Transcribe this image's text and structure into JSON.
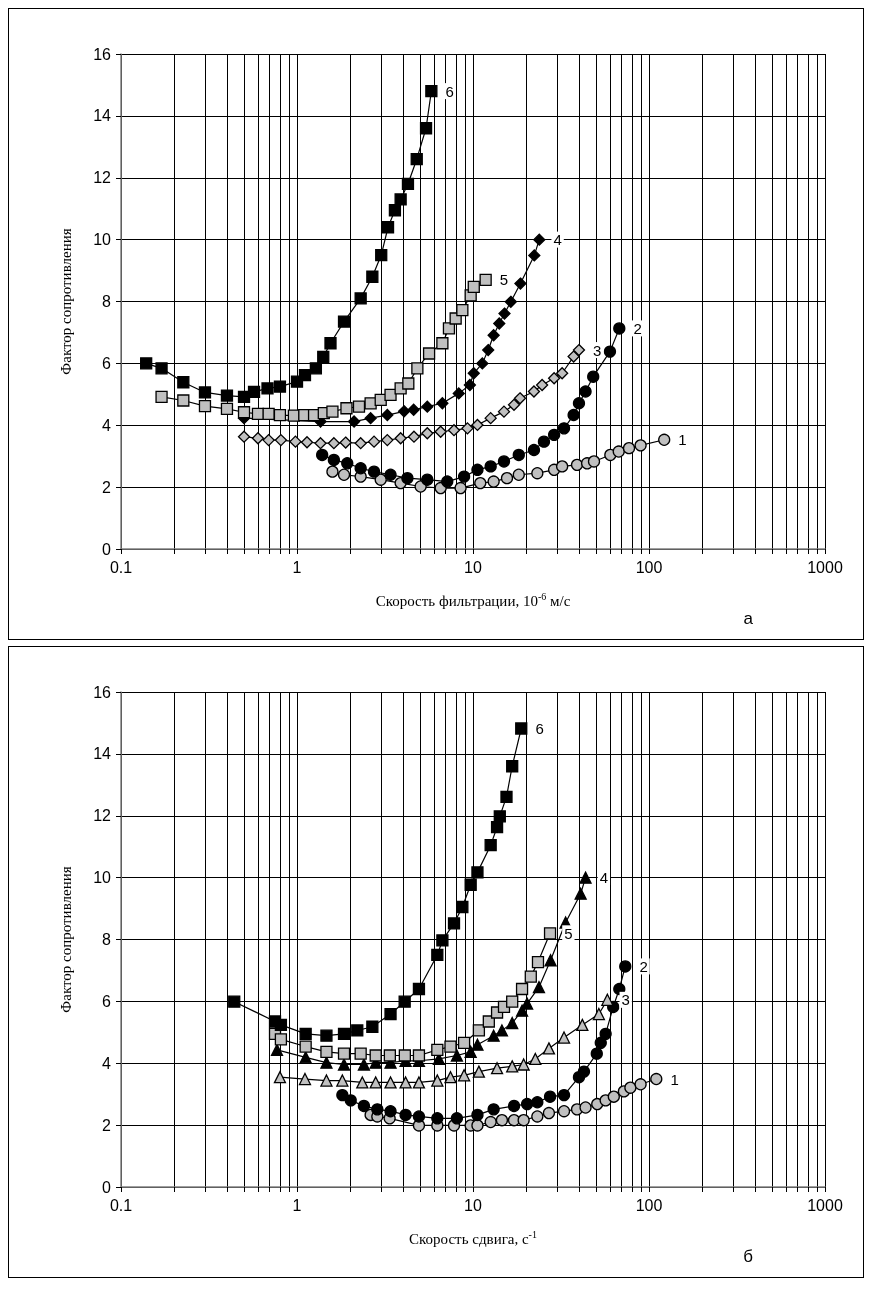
{
  "chart_data": [
    {
      "type": "line",
      "xlabel": "Скорость фильтрации, 10$^{-6}$ м/с",
      "ylabel": "Фактор сопротивления",
      "annotations": [
        "а"
      ],
      "log": "x",
      "grid": true,
      "xlim": [
        0.1,
        1000
      ],
      "xticks": [
        0.1,
        {
          "value": 0.2,
          "label": null
        },
        {
          "value": 0.3,
          "label": null
        },
        {
          "value": 0.4,
          "label": null
        },
        {
          "value": 0.5,
          "label": null
        },
        {
          "value": 0.6,
          "label": null
        },
        {
          "value": 0.7,
          "label": null
        },
        {
          "value": 0.8,
          "label": null
        },
        {
          "value": 0.9,
          "label": null
        },
        1,
        {
          "value": 2,
          "label": null
        },
        {
          "value": 3,
          "label": null
        },
        {
          "value": 4,
          "label": null
        },
        {
          "value": 5,
          "label": null
        },
        {
          "value": 6,
          "label": null
        },
        {
          "value": 7,
          "label": null
        },
        {
          "value": 8,
          "label": null
        },
        {
          "value": 9,
          "label": null
        },
        10,
        {
          "value": 20,
          "label": null
        },
        {
          "value": 30,
          "label": null
        },
        {
          "value": 40,
          "label": null
        },
        {
          "value": 50,
          "label": null
        },
        {
          "value": 60,
          "label": null
        },
        {
          "value": 70,
          "label": null
        },
        {
          "value": 80,
          "label": null
        },
        {
          "value": 90,
          "label": null
        },
        100,
        {
          "value": 200,
          "label": null
        },
        {
          "value": 300,
          "label": null
        },
        {
          "value": 400,
          "label": null
        },
        {
          "value": 500,
          "label": null
        },
        {
          "value": 600,
          "label": null
        },
        {
          "value": 700,
          "label": null
        },
        {
          "value": 800,
          "label": null
        },
        {
          "value": 900,
          "label": null
        },
        1000
      ],
      "ylim": [
        0,
        16
      ],
      "yticks": [
        0,
        2,
        4,
        6,
        8,
        10,
        12,
        14,
        16
      ],
      "series": [
        {
          "name": "1",
          "color": "#c0c0c0",
          "marker": "circle",
          "x": [
            1.59,
            1.85,
            2.3,
            2.99,
            3.88,
            5.04,
            6.55,
            8.5,
            11.0,
            13.1,
            15.6,
            18.2,
            23.2,
            28.9,
            32.1,
            39.0,
            44.5,
            48.7,
            60.3,
            67.3,
            77,
            89.6,
            122
          ],
          "values": [
            2.5,
            2.4,
            2.34,
            2.24,
            2.13,
            2.02,
            1.97,
            1.97,
            2.13,
            2.18,
            2.29,
            2.4,
            2.45,
            2.56,
            2.67,
            2.72,
            2.77,
            2.83,
            3.04,
            3.15,
            3.26,
            3.35,
            3.53
          ]
        },
        {
          "name": "2",
          "color": "#000000",
          "marker": "circle",
          "x": [
            1.39,
            1.62,
            1.93,
            2.3,
            2.74,
            3.4,
            4.24,
            5.5,
            7.14,
            8.9,
            10.6,
            12.6,
            15.0,
            18.2,
            22.2,
            25.3,
            28.9,
            32.9,
            37.3,
            40.0,
            43.6,
            48.2,
            60.0,
            67.8
          ],
          "values": [
            3.04,
            2.88,
            2.77,
            2.61,
            2.5,
            2.4,
            2.29,
            2.24,
            2.18,
            2.34,
            2.56,
            2.67,
            2.83,
            3.04,
            3.2,
            3.47,
            3.69,
            3.9,
            4.33,
            4.71,
            5.09,
            5.57,
            6.38,
            7.13
          ]
        },
        {
          "name": "3",
          "color": "#c0c0c0",
          "marker": "diamond",
          "x": [
            0.5,
            0.6,
            0.69,
            0.81,
            0.98,
            1.14,
            1.36,
            1.62,
            1.89,
            2.3,
            2.74,
            3.26,
            3.88,
            4.62,
            5.5,
            6.55,
            7.8,
            9.3,
            10.6,
            12.6,
            15.0,
            17.1,
            18.5,
            22.2,
            24.7,
            28.9,
            32.1,
            37.3,
            40.0
          ],
          "values": [
            3.63,
            3.58,
            3.52,
            3.52,
            3.47,
            3.45,
            3.42,
            3.42,
            3.44,
            3.42,
            3.47,
            3.52,
            3.58,
            3.63,
            3.74,
            3.79,
            3.84,
            3.9,
            4.01,
            4.23,
            4.44,
            4.66,
            4.87,
            5.09,
            5.3,
            5.52,
            5.68,
            6.22,
            6.43
          ]
        },
        {
          "name": "4",
          "color": "#000000",
          "marker": "diamond",
          "x": [
            0.5,
            0.68,
            0.96,
            1.36,
            2.11,
            2.62,
            3.26,
            4.06,
            4.6,
            5.5,
            6.7,
            8.3,
            9.6,
            10.1,
            11.3,
            12.2,
            13.1,
            14.1,
            15.1,
            16.4,
            18.6,
            22.3,
            23.8
          ],
          "values": [
            4.23,
            null,
            null,
            4.12,
            4.12,
            4.23,
            4.33,
            4.45,
            4.5,
            4.6,
            4.71,
            5.03,
            5.3,
            5.68,
            6.0,
            6.43,
            6.91,
            7.29,
            7.61,
            7.99,
            8.58,
            9.49,
            10.0
          ]
        },
        {
          "name": "5",
          "color": "#c0c0c0",
          "marker": "square",
          "x": [
            0.17,
            0.226,
            0.3,
            0.4,
            0.5,
            0.6,
            0.69,
            0.8,
            0.96,
            1.1,
            1.25,
            1.42,
            1.59,
            1.91,
            2.25,
            2.62,
            2.99,
            3.4,
            3.88,
            4.29,
            4.83,
            5.63,
            6.7,
            7.3,
            7.97,
            8.7,
            9.7,
            10.1,
            11.8
          ],
          "values": [
            4.92,
            4.8,
            4.62,
            4.53,
            4.42,
            4.37,
            4.37,
            4.33,
            4.31,
            4.33,
            4.33,
            4.39,
            4.44,
            4.55,
            4.6,
            4.71,
            4.82,
            4.98,
            5.19,
            5.35,
            5.84,
            6.32,
            6.65,
            7.13,
            7.45,
            7.72,
            8.2,
            8.47,
            8.7
          ]
        },
        {
          "name": "6",
          "color": "#000000",
          "marker": "square",
          "x": [
            0.139,
            0.17,
            0.226,
            0.3,
            0.4,
            0.5,
            0.57,
            0.68,
            0.8,
            1.0,
            1.11,
            1.28,
            1.41,
            1.55,
            1.85,
            2.3,
            2.68,
            3.01,
            3.29,
            3.6,
            3.88,
            4.27,
            4.79,
            5.41,
            5.8
          ],
          "values": [
            6.0,
            5.84,
            5.39,
            5.06,
            4.96,
            4.92,
            5.08,
            5.19,
            5.25,
            5.41,
            5.62,
            5.84,
            6.21,
            6.65,
            7.35,
            8.1,
            8.8,
            9.5,
            10.4,
            10.95,
            11.3,
            11.8,
            12.6,
            13.6,
            14.8
          ]
        }
      ]
    },
    {
      "type": "line",
      "xlabel": "Скорость сдвига, с$^{-1}$",
      "ylabel": "Фактор сопротивления",
      "annotations": [
        "б"
      ],
      "log": "x",
      "grid": true,
      "xlim": [
        0.1,
        1000
      ],
      "xticks": [
        0.1,
        {
          "value": 0.2,
          "label": null
        },
        {
          "value": 0.3,
          "label": null
        },
        {
          "value": 0.4,
          "label": null
        },
        {
          "value": 0.5,
          "label": null
        },
        {
          "value": 0.6,
          "label": null
        },
        {
          "value": 0.7,
          "label": null
        },
        {
          "value": 0.8,
          "label": null
        },
        {
          "value": 0.9,
          "label": null
        },
        1,
        {
          "value": 2,
          "label": null
        },
        {
          "value": 3,
          "label": null
        },
        {
          "value": 4,
          "label": null
        },
        {
          "value": 5,
          "label": null
        },
        {
          "value": 6,
          "label": null
        },
        {
          "value": 7,
          "label": null
        },
        {
          "value": 8,
          "label": null
        },
        {
          "value": 9,
          "label": null
        },
        10,
        {
          "value": 20,
          "label": null
        },
        {
          "value": 30,
          "label": null
        },
        {
          "value": 40,
          "label": null
        },
        {
          "value": 50,
          "label": null
        },
        {
          "value": 60,
          "label": null
        },
        {
          "value": 70,
          "label": null
        },
        {
          "value": 80,
          "label": null
        },
        {
          "value": 90,
          "label": null
        },
        100,
        {
          "value": 200,
          "label": null
        },
        {
          "value": 300,
          "label": null
        },
        {
          "value": 400,
          "label": null
        },
        {
          "value": 500,
          "label": null
        },
        {
          "value": 600,
          "label": null
        },
        {
          "value": 700,
          "label": null
        },
        {
          "value": 800,
          "label": null
        },
        {
          "value": 900,
          "label": null
        },
        1000
      ],
      "ylim": [
        0,
        16
      ],
      "yticks": [
        0,
        2,
        4,
        6,
        8,
        10,
        12,
        14,
        16
      ],
      "series": [
        {
          "name": "1",
          "color": "#c0c0c0",
          "marker": "circle",
          "x": [
            2.62,
            2.86,
            3.36,
            4.09,
            4.93,
            6.27,
            7.8,
            9.7,
            10.6,
            12.6,
            14.6,
            17.1,
            19.4,
            23.2,
            27.0,
            32.9,
            39.0,
            43.6,
            50.8,
            56.7,
            63.1,
            72.0,
            78.4,
            89.6,
            110
          ],
          "values": [
            2.33,
            2.28,
            2.22,
            null,
            1.99,
            1.99,
            1.99,
            1.99,
            1.99,
            2.1,
            2.16,
            2.16,
            2.16,
            2.28,
            2.39,
            2.45,
            2.51,
            2.57,
            2.68,
            2.8,
            2.92,
            3.09,
            3.21,
            3.32,
            3.49
          ]
        },
        {
          "name": "2",
          "color": "#000000",
          "marker": "circle",
          "x": [
            1.81,
            2.02,
            2.4,
            2.86,
            3.4,
            4.14,
            4.93,
            6.27,
            8.1,
            10.6,
            13.1,
            17.1,
            20.3,
            23.2,
            27.4,
            32.9,
            40,
            42.7,
            50.5,
            53.2,
            56.7,
            62.6,
            67.8,
            73.3
          ],
          "values": [
            2.97,
            2.8,
            2.62,
            2.51,
            2.45,
            2.33,
            2.28,
            2.22,
            2.22,
            2.33,
            2.51,
            2.62,
            2.68,
            2.74,
            2.92,
            2.97,
            3.55,
            3.73,
            4.31,
            4.66,
            4.95,
            5.82,
            6.4,
            7.13
          ]
        },
        {
          "name": "3",
          "color": "#c0c0c0",
          "marker": "triangle",
          "x": [
            0.8,
            1.11,
            1.47,
            1.81,
            2.35,
            2.8,
            3.4,
            4.14,
            4.93,
            6.27,
            7.45,
            8.9,
            10.8,
            13.7,
            16.7,
            19.4,
            22.6,
            27.0,
            32.9,
            41.8,
            51.9,
            58.0
          ],
          "values": [
            3.55,
            3.49,
            3.44,
            3.44,
            3.38,
            3.38,
            3.38,
            3.38,
            3.38,
            3.44,
            3.55,
            3.61,
            3.73,
            3.84,
            3.9,
            3.96,
            4.14,
            4.48,
            4.83,
            5.24,
            5.59,
            6.05
          ]
        },
        {
          "name": "4",
          "color": "#000000",
          "marker": "triangle",
          "x": [
            0.77,
            1.12,
            1.47,
            1.85,
            2.4,
            2.8,
            3.4,
            4.14,
            4.93,
            6.4,
            8.1,
            9.7,
            10.6,
            13.1,
            14.6,
            16.7,
            19.0,
            20.3,
            23.7,
            27.6,
            33.6,
            40.9,
            43.6
          ],
          "values": [
            4.43,
            4.19,
            4.02,
            3.96,
            3.96,
            4.02,
            4.02,
            4.08,
            4.08,
            4.14,
            4.25,
            4.37,
            4.6,
            4.89,
            5.06,
            5.3,
            5.7,
            5.93,
            6.46,
            7.33,
            8.55,
            9.48,
            10.0
          ]
        },
        {
          "name": "5",
          "color": "#c0c0c0",
          "marker": "square",
          "x": [
            0.75,
            0.81,
            1.12,
            1.47,
            1.85,
            2.3,
            2.8,
            3.37,
            4.1,
            4.93,
            6.27,
            7.45,
            8.9,
            10.8,
            12.3,
            13.7,
            15.0,
            16.7,
            19.0,
            21.3,
            23.4,
            27.4
          ],
          "values": [
            4.95,
            4.77,
            4.54,
            4.37,
            4.31,
            4.31,
            4.25,
            4.25,
            4.25,
            4.25,
            4.43,
            4.54,
            4.66,
            5.06,
            5.35,
            5.64,
            5.82,
            5.99,
            6.4,
            6.8,
            7.27,
            8.2
          ]
        },
        {
          "name": "6",
          "color": "#000000",
          "marker": "square",
          "x": [
            0.44,
            0.75,
            0.81,
            1.12,
            1.47,
            1.85,
            2.2,
            2.68,
            3.4,
            4.09,
            4.93,
            6.27,
            6.7,
            7.8,
            8.7,
            9.7,
            10.6,
            12.6,
            13.7,
            14.2,
            15.5,
            16.7,
            18.8
          ],
          "values": [
            5.99,
            5.35,
            5.24,
            4.95,
            4.89,
            4.95,
            5.06,
            5.18,
            5.59,
            5.99,
            6.4,
            7.5,
            7.97,
            8.52,
            9.05,
            9.77,
            10.17,
            11.05,
            11.63,
            11.98,
            12.61,
            13.6,
            14.82
          ]
        }
      ]
    }
  ]
}
